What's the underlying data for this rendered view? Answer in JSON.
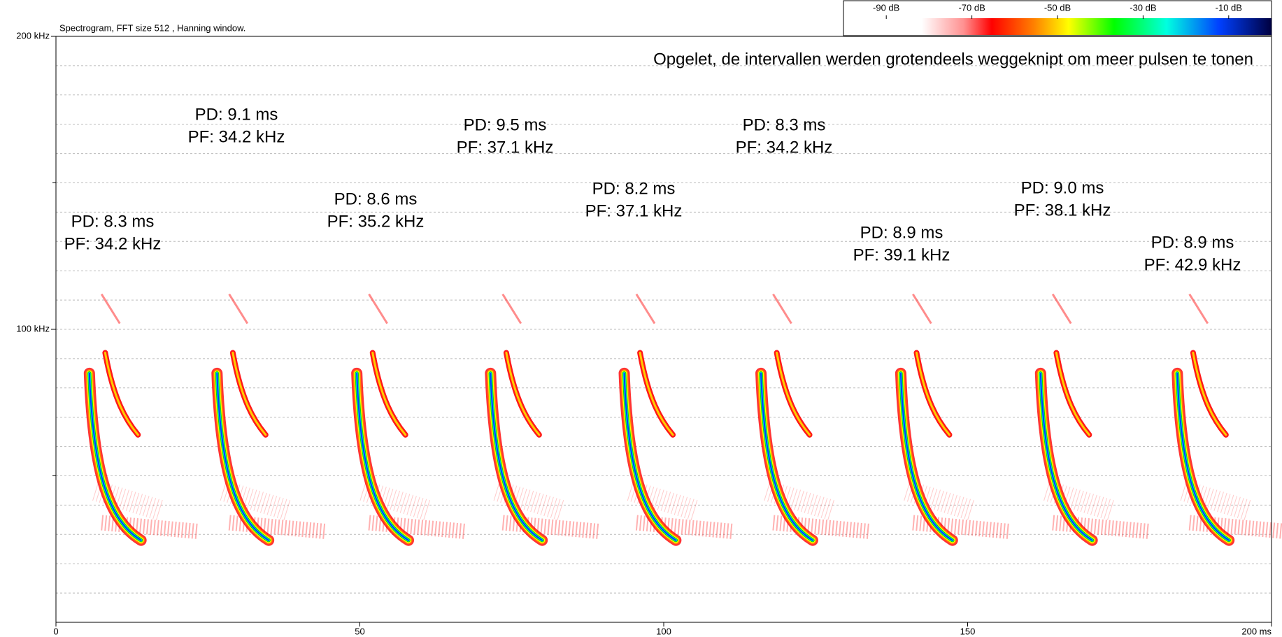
{
  "chart_data": {
    "type": "spectrogram",
    "title": "Spectrogram, FFT size 512 , Hanning window.",
    "note": "Opgelet, de intervallen werden grotendeels weggeknipt om meer pulsen te tonen",
    "xlim": [
      0,
      200
    ],
    "xticks": [
      0,
      50,
      100,
      150,
      {
        "value": 200,
        "label": "200 ms"
      }
    ],
    "ylim": [
      0,
      200
    ],
    "yticks": [
      {
        "value": 100,
        "label": "100 kHz"
      },
      {
        "value": 200,
        "label": "200 kHz"
      }
    ],
    "yminor": [
      50,
      150
    ],
    "ygrid": [
      10,
      20,
      30,
      40,
      50,
      60,
      70,
      80,
      90,
      100,
      110,
      120,
      130,
      140,
      150,
      160,
      170,
      180,
      190
    ],
    "grid": true,
    "annotations": [
      {
        "pd": "PD: 8.3 ms",
        "pf": "PF: 34.2 kHz"
      },
      {
        "pd": "PD: 9.1 ms",
        "pf": "PF: 34.2 kHz"
      },
      {
        "pd": "PD: 8.6 ms",
        "pf": "PF: 35.2 kHz"
      },
      {
        "pd": "PD: 9.5 ms",
        "pf": "PF: 37.1 kHz"
      },
      {
        "pd": "PD: 8.2 ms",
        "pf": "PF: 37.1 kHz"
      },
      {
        "pd": "PD: 8.3 ms",
        "pf": "PF: 34.2 kHz"
      },
      {
        "pd": "PD: 8.9 ms",
        "pf": "PF: 39.1 kHz"
      },
      {
        "pd": "PD: 9.0 ms",
        "pf": "PF: 38.1 kHz"
      },
      {
        "pd": "PD: 8.9 ms",
        "pf": "PF: 42.9 kHz"
      }
    ],
    "colorbar": {
      "lim": [
        -100,
        0
      ],
      "ticks": [
        {
          "value": -90,
          "label": "-90 dB"
        },
        {
          "value": -70,
          "label": "-70 dB"
        },
        {
          "value": -50,
          "label": "-50 dB"
        },
        {
          "value": -30,
          "label": "-30 dB"
        },
        {
          "value": -10,
          "label": "-10 dB"
        }
      ]
    }
  }
}
